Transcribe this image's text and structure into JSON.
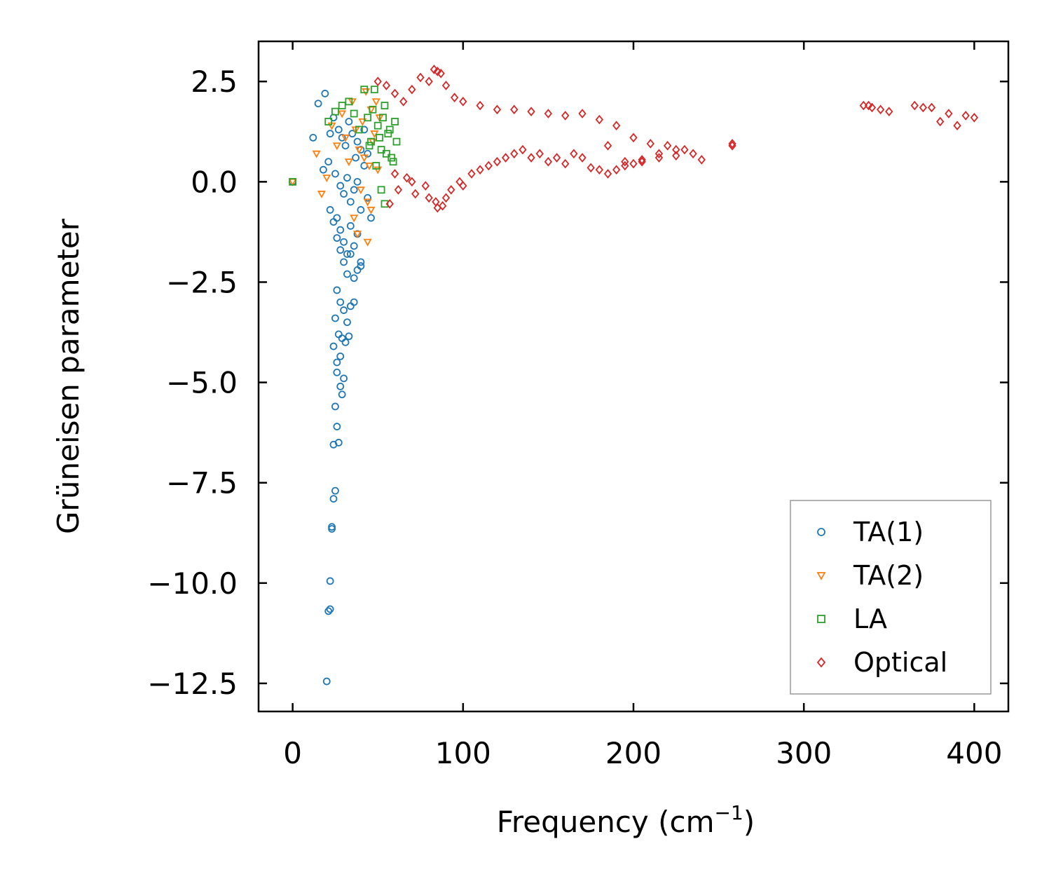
{
  "chart_data": {
    "type": "scatter",
    "title": "",
    "xlabel": "Frequency (cm",
    "xlabel_sup": "−1",
    "xlabel_close": ")",
    "ylabel": "Grüneisen parameter",
    "xlim": [
      -20,
      420
    ],
    "ylim": [
      -13.2,
      3.5
    ],
    "xticks": [
      0,
      100,
      200,
      300,
      400
    ],
    "xtick_labels": [
      "0",
      "100",
      "200",
      "300",
      "400"
    ],
    "yticks": [
      2.5,
      0.0,
      -2.5,
      -5.0,
      -7.5,
      -10.0,
      -12.5
    ],
    "ytick_labels": [
      "2.5",
      "0.0",
      "−2.5",
      "−5.0",
      "−7.5",
      "−10.0",
      "−12.5"
    ],
    "legend_position": "lower-right",
    "series": [
      {
        "name": "TA(1)",
        "label": "TA(1)",
        "marker": "circle",
        "color": "#1f77b4",
        "x": [
          0,
          12,
          15,
          19,
          22,
          24,
          27,
          29,
          31,
          33,
          35,
          37,
          38,
          40,
          42,
          44,
          18,
          21,
          25,
          28,
          30,
          32,
          34,
          36,
          38,
          40,
          42,
          44,
          46,
          26,
          28,
          30,
          32,
          34,
          36,
          38,
          40,
          22,
          24,
          26,
          28,
          30,
          32,
          34,
          36,
          38,
          40,
          26,
          28,
          30,
          32,
          34,
          36,
          25,
          27,
          29,
          31,
          33,
          24,
          26,
          28,
          30,
          26,
          28,
          29,
          25,
          26,
          27,
          24,
          25,
          24,
          23,
          23,
          22,
          22,
          21,
          20
        ],
        "y": [
          0,
          1.1,
          1.95,
          2.2,
          1.2,
          1.6,
          1.3,
          1.1,
          0.9,
          1.5,
          1.2,
          0.6,
          1.0,
          0.8,
          1.3,
          0.7,
          0.3,
          0.5,
          0.2,
          -0.1,
          -0.3,
          0.1,
          -0.5,
          -0.2,
          0.0,
          -0.7,
          0.4,
          -0.4,
          -0.9,
          -0.9,
          -1.2,
          -1.5,
          -1.8,
          -1.1,
          -1.6,
          -1.3,
          -2.0,
          -0.7,
          -1.0,
          -1.4,
          -1.7,
          -2.0,
          -2.3,
          -1.8,
          -2.4,
          -2.2,
          -2.1,
          -2.7,
          -3.0,
          -3.2,
          -3.5,
          -3.1,
          -3.0,
          -3.4,
          -3.8,
          -3.9,
          -4.0,
          -3.85,
          -4.1,
          -4.5,
          -4.35,
          -4.9,
          -4.75,
          -5.1,
          -5.3,
          -5.6,
          -6.1,
          -6.5,
          -6.55,
          -7.7,
          -7.9,
          -8.6,
          -8.65,
          -9.95,
          -10.65,
          -10.7,
          -12.45
        ]
      },
      {
        "name": "TA(2)",
        "label": "TA(2)",
        "marker": "triangle_down",
        "color": "#ff7f0e",
        "x": [
          0,
          14,
          17,
          20,
          23,
          26,
          29,
          31,
          33,
          35,
          37,
          39,
          41,
          43,
          45,
          47,
          49,
          51,
          40,
          42,
          44,
          46,
          48,
          50,
          36,
          38,
          44,
          46
        ],
        "y": [
          0,
          0.7,
          -0.3,
          0.1,
          1.4,
          0.9,
          1.7,
          1.1,
          0.5,
          2.0,
          1.3,
          0.8,
          1.5,
          2.25,
          0.4,
          1.0,
          2.0,
          1.6,
          -0.2,
          0.6,
          -0.5,
          1.8,
          1.2,
          0.3,
          -0.9,
          -1.3,
          -1.5,
          -0.7
        ]
      },
      {
        "name": "LA",
        "label": "LA",
        "marker": "square",
        "color": "#2ca02c",
        "x": [
          0,
          21,
          25,
          29,
          33,
          36,
          39,
          42,
          44,
          46,
          48,
          50,
          52,
          54,
          56,
          58,
          60,
          45,
          47,
          49,
          51,
          53,
          55,
          57,
          59,
          61,
          52,
          54
        ],
        "y": [
          0,
          1.5,
          1.75,
          1.9,
          2.0,
          1.7,
          1.3,
          2.3,
          1.6,
          1.0,
          2.3,
          1.4,
          0.8,
          1.9,
          1.2,
          0.6,
          1.5,
          0.9,
          1.8,
          0.4,
          1.1,
          1.6,
          0.7,
          1.3,
          0.5,
          1.0,
          -0.2,
          -0.55
        ]
      },
      {
        "name": "Optical",
        "label": "Optical",
        "marker": "diamond",
        "color": "#d62728",
        "x": [
          50,
          55,
          60,
          65,
          70,
          75,
          80,
          83,
          85,
          87,
          90,
          95,
          100,
          110,
          120,
          130,
          140,
          150,
          160,
          170,
          180,
          190,
          200,
          210,
          220,
          230,
          240,
          258,
          335,
          340,
          345,
          365,
          375,
          385,
          400,
          60,
          70,
          80,
          85,
          90,
          100,
          110,
          120,
          130,
          140,
          150,
          160,
          170,
          175,
          180,
          185,
          190,
          195,
          200,
          205,
          215,
          225,
          235,
          57,
          62,
          67,
          72,
          78,
          84,
          88,
          93,
          98,
          105,
          115,
          125,
          135,
          145,
          155,
          165,
          185,
          195,
          205,
          215,
          225,
          258,
          338,
          350,
          370,
          380,
          390,
          395
        ],
        "y": [
          2.5,
          2.4,
          2.2,
          2.0,
          2.3,
          2.6,
          2.5,
          2.8,
          2.75,
          2.7,
          2.4,
          2.1,
          2.0,
          1.9,
          1.8,
          1.8,
          1.75,
          1.7,
          1.65,
          1.7,
          1.55,
          1.4,
          1.1,
          0.95,
          0.9,
          0.8,
          0.55,
          0.95,
          1.9,
          1.85,
          1.8,
          1.9,
          1.85,
          1.7,
          1.6,
          0.2,
          0.0,
          -0.4,
          -0.65,
          -0.4,
          -0.1,
          0.3,
          0.5,
          0.7,
          0.6,
          0.5,
          0.45,
          0.6,
          0.35,
          0.3,
          0.2,
          0.3,
          0.5,
          0.45,
          0.55,
          0.6,
          0.65,
          0.7,
          -0.55,
          -0.2,
          0.1,
          -0.3,
          -0.1,
          -0.5,
          -0.6,
          -0.2,
          0.0,
          0.2,
          0.4,
          0.6,
          0.8,
          0.7,
          0.6,
          0.7,
          0.9,
          0.4,
          0.5,
          0.7,
          0.8,
          0.9,
          1.9,
          1.75,
          1.85,
          1.5,
          1.4,
          1.65
        ]
      }
    ]
  }
}
